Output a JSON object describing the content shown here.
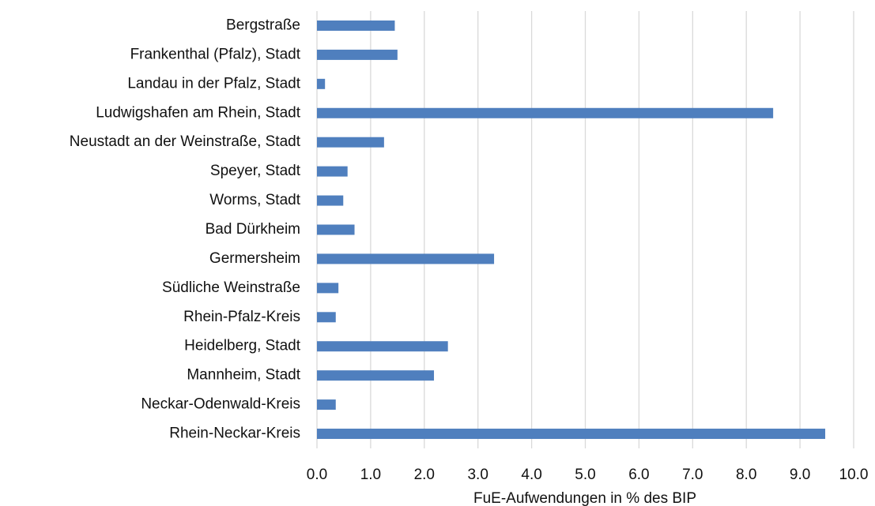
{
  "chart_data": {
    "type": "barh",
    "xlabel": "FuE-Aufwendungen in % des BIP",
    "categories": [
      "Bergstraße",
      "Frankenthal (Pfalz), Stadt",
      "Landau in der Pfalz, Stadt",
      "Ludwigshafen am Rhein, Stadt",
      "Neustadt an der Weinstraße, Stadt",
      "Speyer, Stadt",
      "Worms, Stadt",
      "Bad Dürkheim",
      "Germersheim",
      "Südliche Weinstraße",
      "Rhein-Pfalz-Kreis",
      "Heidelberg, Stadt",
      "Mannheim, Stadt",
      "Neckar-Odenwald-Kreis",
      "Rhein-Neckar-Kreis"
    ],
    "values": [
      1.45,
      1.5,
      0.15,
      8.5,
      1.25,
      0.57,
      0.49,
      0.7,
      3.3,
      0.4,
      0.35,
      2.44,
      2.18,
      0.35,
      9.47
    ],
    "color": "#4f7fbe",
    "xlim": [
      0,
      10
    ],
    "xticks": [
      {
        "value": 0,
        "label": "0.0"
      },
      {
        "value": 1,
        "label": "1.0"
      },
      {
        "value": 2,
        "label": "2.0"
      },
      {
        "value": 3,
        "label": "3.0"
      },
      {
        "value": 4,
        "label": "4.0"
      },
      {
        "value": 5,
        "label": "5.0"
      },
      {
        "value": 6,
        "label": "6.0"
      },
      {
        "value": 7,
        "label": "7.0"
      },
      {
        "value": 8,
        "label": "8.0"
      },
      {
        "value": 9,
        "label": "9.0"
      },
      {
        "value": 10,
        "label": "10.0"
      }
    ],
    "grid": true
  }
}
